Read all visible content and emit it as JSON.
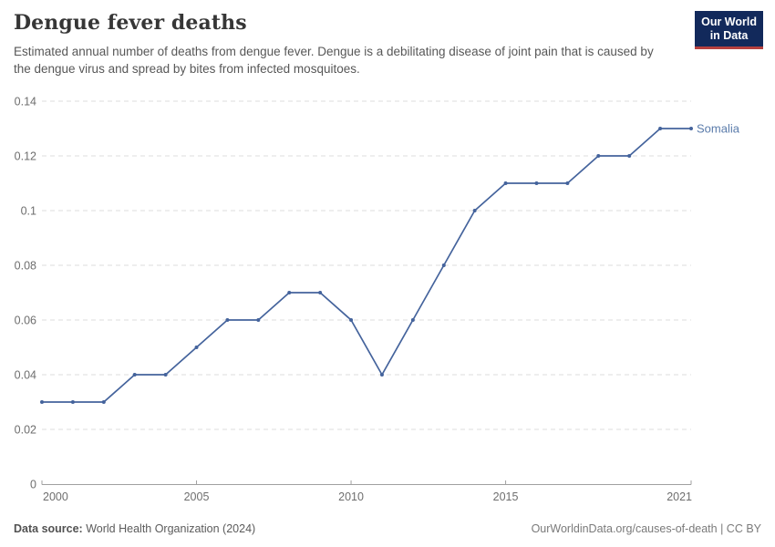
{
  "header": {
    "title": "Dengue fever deaths",
    "subtitle": "Estimated annual number of deaths from dengue fever. Dengue is a debilitating disease of joint pain that is caused by the dengue virus and spread by bites from infected mosquitoes.",
    "logo": {
      "line1": "Our World",
      "line2": "in Data",
      "bg_color": "#12295b",
      "accent_color": "#b5403f"
    }
  },
  "chart_data": {
    "type": "line",
    "title": "Dengue fever deaths",
    "xlabel": "",
    "ylabel": "",
    "xlim": [
      2000,
      2021
    ],
    "ylim": [
      0,
      0.14
    ],
    "x_ticks": [
      2000,
      2005,
      2010,
      2015,
      2021
    ],
    "y_ticks": [
      0,
      0.02,
      0.04,
      0.06,
      0.08,
      0.1,
      0.12,
      0.14
    ],
    "grid": "horizontal-dashed",
    "grid_color": "#dcdcdc",
    "axis_color": "#a0a0a0",
    "legend_position": "end-of-line-label",
    "series": [
      {
        "name": "Somalia",
        "color": "#44639c",
        "label_color": "#5b7cab",
        "x": [
          2000,
          2001,
          2002,
          2003,
          2004,
          2005,
          2006,
          2007,
          2008,
          2009,
          2010,
          2011,
          2012,
          2013,
          2014,
          2015,
          2016,
          2017,
          2018,
          2019,
          2020,
          2021
        ],
        "values": [
          0.03,
          0.03,
          0.03,
          0.04,
          0.04,
          0.05,
          0.06,
          0.06,
          0.07,
          0.07,
          0.06,
          0.04,
          0.06,
          0.08,
          0.1,
          0.11,
          0.11,
          0.11,
          0.12,
          0.12,
          0.13,
          0.13
        ]
      }
    ]
  },
  "footer": {
    "source_label": "Data source:",
    "source_value": "World Health Organization (2024)",
    "attribution": "OurWorldinData.org/causes-of-death | CC BY"
  }
}
